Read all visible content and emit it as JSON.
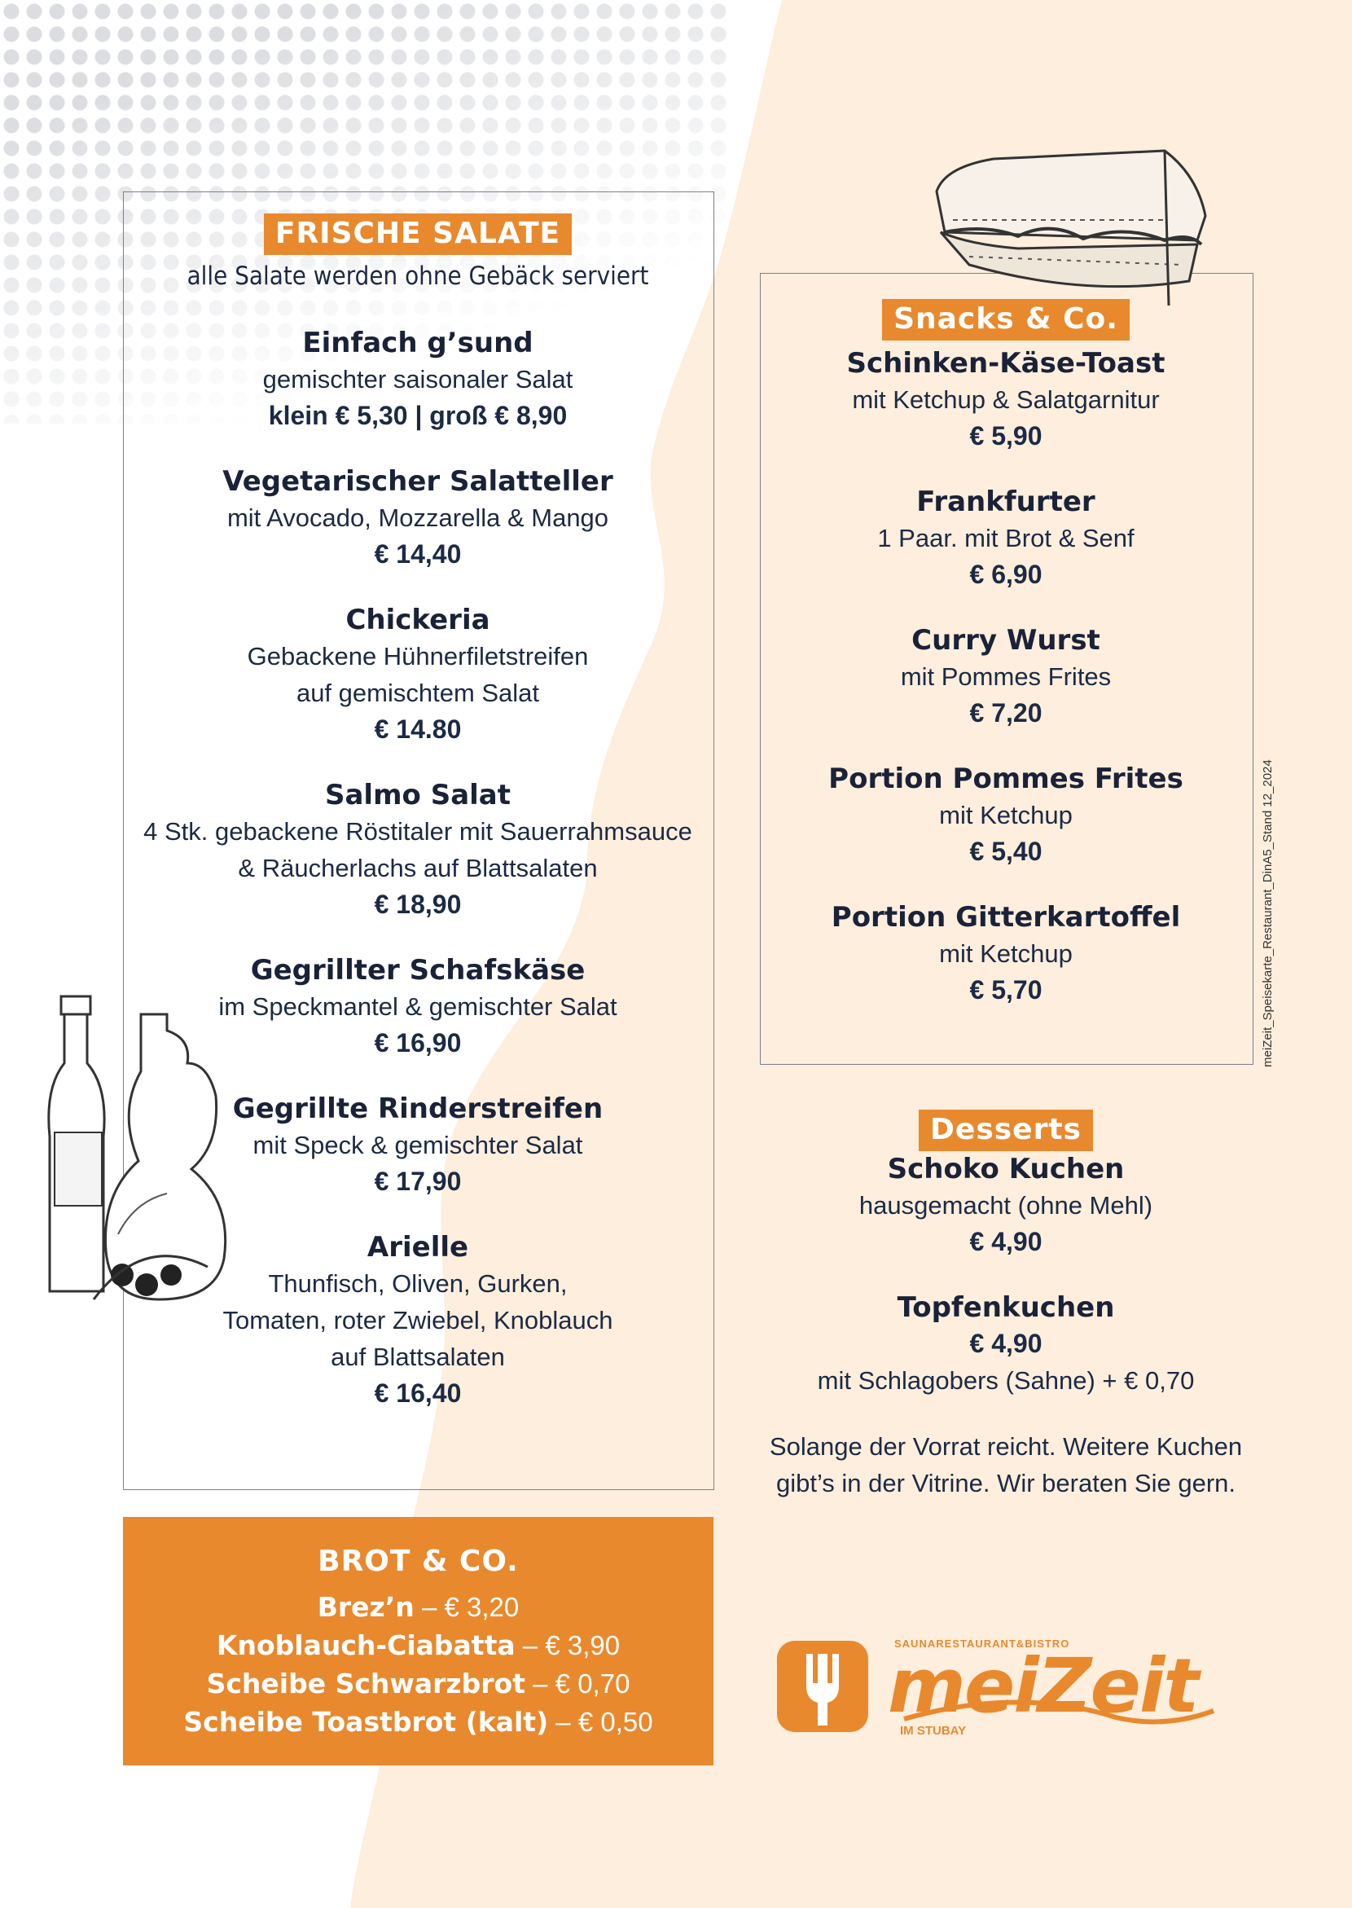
{
  "salads": {
    "title": "FRISCHE SALATE",
    "note": "alle Salate werden ohne Gebäck serviert",
    "items": [
      {
        "name": "Einfach g’sund",
        "desc": [
          "gemischter saisonaler Salat"
        ],
        "price": "klein   € 5,30 | groß  € 8,90"
      },
      {
        "name": "Vegetarischer Salatteller",
        "desc": [
          "mit Avocado, Mozzarella & Mango"
        ],
        "price": "€ 14,40"
      },
      {
        "name": "Chickeria",
        "desc": [
          "Gebackene Hühnerfiletstreifen",
          "auf gemischtem Salat"
        ],
        "price": "€ 14.80"
      },
      {
        "name": "Salmo Salat",
        "desc": [
          "4 Stk. gebackene Röstitaler mit Sauerrahmsauce",
          "& Räucherlachs auf Blattsalaten"
        ],
        "price": "€ 18,90"
      },
      {
        "name": "Gegrillter Schafskäse",
        "desc": [
          "im Speckmantel & gemischter Salat"
        ],
        "price": "€ 16,90"
      },
      {
        "name": "Gegrillte Rinderstreifen",
        "desc": [
          "mit Speck & gemischter Salat"
        ],
        "price": "€ 17,90"
      },
      {
        "name": "Arielle",
        "desc": [
          "Thunfisch, Oliven, Gurken,",
          "Tomaten, roter Zwiebel, Knoblauch",
          "auf Blattsalaten"
        ],
        "price": "€ 16,40"
      }
    ]
  },
  "snacks": {
    "title": "Snacks & Co.",
    "items": [
      {
        "name": "Schinken-Käse-Toast",
        "desc": [
          "mit Ketchup & Salatgarnitur"
        ],
        "price": "€ 5,90"
      },
      {
        "name": "Frankfurter",
        "desc": [
          "1 Paar. mit Brot & Senf"
        ],
        "price": "€ 6,90"
      },
      {
        "name": "Curry Wurst",
        "desc": [
          "mit Pommes Frites"
        ],
        "price": "€ 7,20"
      },
      {
        "name": "Portion Pommes Frites",
        "desc": [
          "mit Ketchup"
        ],
        "price": "€ 5,40"
      },
      {
        "name": "Portion Gitterkartoffel",
        "desc": [
          "mit Ketchup"
        ],
        "price": "€ 5,70"
      }
    ]
  },
  "desserts": {
    "title": "Desserts",
    "items": [
      {
        "name": "Schoko Kuchen",
        "lines": [
          {
            "t": "hausgemacht (ohne Mehl)",
            "k": "desc"
          },
          {
            "t": "€ 4,90",
            "k": "price"
          }
        ]
      },
      {
        "name": "Topfenkuchen",
        "lines": [
          {
            "t": "€ 4,90",
            "k": "price"
          },
          {
            "t": "mit Schlagobers (Sahne) + € 0,70",
            "k": "desc"
          }
        ]
      }
    ],
    "note": [
      "Solange der Vorrat reicht. Weitere Kuchen",
      "gibt’s in der Vitrine. Wir beraten Sie gern."
    ]
  },
  "brot": {
    "title": "BROT & CO.",
    "items": [
      {
        "name": "Brez’n",
        "price": " – € 3,20"
      },
      {
        "name": "Knoblauch-Ciabatta",
        "price": "  – € 3,90"
      },
      {
        "name": "Scheibe Schwarzbrot",
        "price": " – € 0,70"
      },
      {
        "name": "Scheibe Toastbrot (kalt)",
        "price": " –  € 0,50"
      }
    ]
  },
  "side_text": "meiZeit_Speisekarte_Restaurant_DinA5_Stand 12_2024",
  "logo": {
    "top": "SAUNARESTAURANT&BISTRO",
    "name": "meiZeit",
    "bottom": "IM STUBAY"
  },
  "colors": {
    "accent": "#e8892e",
    "cream": "#fdeedd",
    "text": "#1c2a44"
  }
}
